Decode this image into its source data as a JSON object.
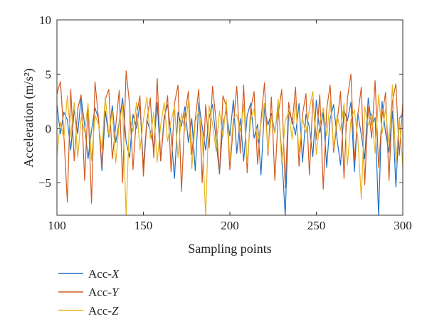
{
  "chart_data": {
    "type": "line",
    "title": "",
    "xlabel": "Sampling points",
    "ylabel": "Acceleration (m/s²)",
    "xlim": [
      100,
      300
    ],
    "ylim": [
      -8,
      10
    ],
    "xticks": [
      100,
      150,
      200,
      250,
      300
    ],
    "yticks": [
      -5,
      0,
      5,
      10
    ],
    "grid": false,
    "legend_position": "below-left",
    "x_start": 100,
    "x_step": 2,
    "series": [
      {
        "name": "Acc-X",
        "color": "#1f6fc5",
        "values": [
          2.2,
          -0.5,
          1.5,
          0.8,
          -2.0,
          1.7,
          -0.5,
          2.9,
          0.3,
          -2.8,
          -0.2,
          1.9,
          0.9,
          -3.9,
          1.6,
          -0.8,
          2.1,
          -1.3,
          0.6,
          2.8,
          -1.2,
          -2.7,
          1.3,
          0.0,
          2.3,
          -3.6,
          0.8,
          -0.3,
          -1.7,
          2.4,
          -3.0,
          1.1,
          2.2,
          -0.6,
          -4.6,
          1.5,
          0.2,
          2.0,
          -1.3,
          0.9,
          -3.9,
          2.4,
          0.2,
          -2.0,
          1.0,
          2.2,
          -1.1,
          -4.2,
          0.5,
          1.6,
          -0.7,
          2.6,
          -2.3,
          0.9,
          -3.0,
          1.2,
          2.3,
          -0.9,
          0.4,
          -4.3,
          1.9,
          0.3,
          1.4,
          -0.4,
          2.1,
          -2.4,
          -8.1,
          1.6,
          0.8,
          -0.6,
          2.3,
          -3.1,
          1.3,
          0.1,
          -2.6,
          2.6,
          -0.4,
          1.5,
          -3.6,
          0.9,
          2.2,
          -1.0,
          -3.4,
          1.7,
          0.7,
          2.4,
          -4.0,
          1.4,
          -0.6,
          -2.8,
          2.8,
          0.3,
          1.0,
          -8.1,
          2.5,
          -0.4,
          -2.2,
          1.6,
          -5.4,
          0.9,
          1.4
        ]
      },
      {
        "name": "Acc-Y",
        "color": "#d15a1e",
        "values": [
          3.2,
          4.3,
          -0.5,
          -6.8,
          3.6,
          -3.0,
          1.8,
          3.1,
          -4.8,
          2.2,
          -6.9,
          4.3,
          1.0,
          -3.5,
          2.7,
          3.6,
          -2.8,
          0.2,
          3.5,
          -5.0,
          5.3,
          2.2,
          -3.8,
          1.2,
          3.0,
          -4.4,
          0.7,
          2.8,
          -2.7,
          4.6,
          -3.0,
          0.7,
          3.0,
          -4.0,
          2.3,
          4.0,
          -5.8,
          1.3,
          3.4,
          -2.4,
          0.9,
          3.6,
          -5.0,
          2.2,
          -1.8,
          3.9,
          0.7,
          -4.2,
          3.0,
          2.0,
          -3.8,
          0.3,
          3.9,
          -2.3,
          4.0,
          -4.1,
          1.8,
          3.4,
          -3.3,
          0.7,
          4.2,
          -2.5,
          2.9,
          -4.8,
          1.3,
          3.6,
          -5.5,
          2.4,
          0.4,
          3.8,
          -3.5,
          1.3,
          3.2,
          -4.3,
          2.7,
          -1.0,
          3.1,
          -5.6,
          1.8,
          4.0,
          -2.2,
          0.6,
          3.4,
          -4.6,
          2.8,
          5.0,
          -3.0,
          1.2,
          3.8,
          -5.2,
          2.0,
          -0.9,
          4.4,
          -3.6,
          1.1,
          3.3,
          -4.8,
          2.5,
          4.1,
          -2.5,
          2.3
        ]
      },
      {
        "name": "Acc-Z",
        "color": "#e8b41a",
        "values": [
          -2.5,
          0.6,
          -1.0,
          3.0,
          -0.8,
          2.4,
          -2.7,
          1.0,
          -0.3,
          2.3,
          -3.0,
          1.2,
          0.4,
          -1.9,
          2.9,
          -0.6,
          1.6,
          -3.2,
          0.5,
          2.1,
          -8.1,
          1.2,
          -0.3,
          2.4,
          -2.0,
          0.8,
          2.9,
          -0.9,
          1.5,
          -3.1,
          0.3,
          2.4,
          -1.2,
          0.7,
          2.0,
          -2.7,
          1.4,
          -0.2,
          2.5,
          -3.7,
          0.6,
          1.6,
          -0.6,
          -8.1,
          2.1,
          0.4,
          -2.1,
          1.6,
          -0.8,
          2.6,
          -2.9,
          0.9,
          1.3,
          -0.3,
          2.2,
          -3.2,
          0.8,
          1.8,
          -1.3,
          0.4,
          2.3,
          -2.1,
          1.1,
          -0.5,
          2.7,
          -3.3,
          0.7,
          1.5,
          -1.0,
          2.4,
          -2.2,
          0.9,
          -0.4,
          1.8,
          3.4,
          -2.4,
          0.6,
          1.9,
          -0.7,
          2.6,
          -1.8,
          1.2,
          -0.2,
          2.3,
          -3.4,
          0.8,
          1.7,
          -0.9,
          -6.5,
          2.0,
          0.3,
          1.4,
          -2.3,
          3.1,
          -0.5,
          1.8,
          -1.5,
          4.0,
          -3.2,
          0.9,
          -3.5
        ]
      }
    ]
  }
}
